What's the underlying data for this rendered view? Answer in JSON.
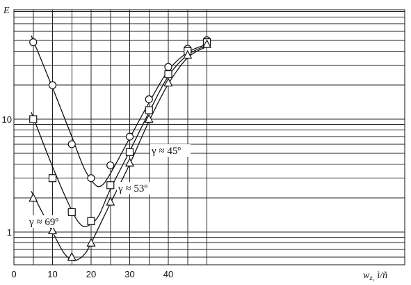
{
  "chart_data": {
    "type": "line",
    "ylabel": "E",
    "xlabel": "w",
    "xlabel_sub": "z,",
    "xlabel_unit": "ì/ñ",
    "xlim": [
      0,
      50
    ],
    "ylim": [
      0.5,
      60
    ],
    "yscale": "log",
    "grid": true,
    "x_ticks": [
      "0",
      "10",
      "20",
      "30",
      "40"
    ],
    "y_ticks": [
      "1",
      "10"
    ],
    "series": [
      {
        "name": "γ≈45º",
        "marker": "circle",
        "points": [
          [
            5,
            48
          ],
          [
            10,
            20
          ],
          [
            15,
            6
          ],
          [
            20,
            3
          ],
          [
            25,
            3.9
          ],
          [
            30,
            7
          ],
          [
            35,
            15
          ],
          [
            40,
            29
          ],
          [
            45,
            42
          ],
          [
            50,
            50
          ]
        ],
        "curve": [
          [
            4.5,
            55
          ],
          [
            10,
            19
          ],
          [
            15,
            7
          ],
          [
            18,
            3.8
          ],
          [
            20.5,
            2.75
          ],
          [
            22.5,
            2.55
          ],
          [
            25,
            3.3
          ],
          [
            30,
            6.8
          ],
          [
            35,
            14
          ],
          [
            40,
            27
          ],
          [
            45,
            39
          ],
          [
            50,
            46
          ]
        ]
      },
      {
        "name": "γ≈53º",
        "marker": "square",
        "points": [
          [
            5,
            10
          ],
          [
            10,
            3
          ],
          [
            15,
            1.5
          ],
          [
            20,
            1.25
          ],
          [
            25,
            2.6
          ],
          [
            30,
            5.1
          ],
          [
            35,
            12
          ],
          [
            40,
            25
          ],
          [
            45,
            40
          ],
          [
            50,
            48
          ]
        ],
        "curve": [
          [
            4.5,
            11.5
          ],
          [
            10,
            3.8
          ],
          [
            15,
            1.55
          ],
          [
            17.5,
            1.15
          ],
          [
            19.5,
            1.15
          ],
          [
            22,
            1.4
          ],
          [
            25,
            2.4
          ],
          [
            30,
            5.2
          ],
          [
            35,
            11.5
          ],
          [
            40,
            24
          ],
          [
            45,
            37
          ],
          [
            50,
            45
          ]
        ]
      },
      {
        "name": "γ≈69º",
        "marker": "triangle",
        "points": [
          [
            5,
            2
          ],
          [
            10,
            1.03
          ],
          [
            15,
            0.6
          ],
          [
            20,
            0.8
          ],
          [
            25,
            1.85
          ],
          [
            30,
            4.1
          ],
          [
            35,
            10
          ],
          [
            40,
            21
          ],
          [
            45,
            37
          ],
          [
            50,
            46
          ]
        ],
        "curve": [
          [
            4.5,
            2.3
          ],
          [
            10,
            1.0
          ],
          [
            13,
            0.65
          ],
          [
            15.5,
            0.56
          ],
          [
            18,
            0.62
          ],
          [
            20,
            0.8
          ],
          [
            25,
            1.8
          ],
          [
            30,
            4.0
          ],
          [
            35,
            9.6
          ],
          [
            40,
            20.5
          ],
          [
            45,
            35
          ],
          [
            50,
            44
          ]
        ]
      }
    ],
    "annotations": [
      {
        "text": "γ ≈ 45º",
        "series": 0
      },
      {
        "text": "γ ≈ 53º",
        "series": 1
      },
      {
        "text": "γ ≈ 69º",
        "series": 2
      }
    ]
  }
}
